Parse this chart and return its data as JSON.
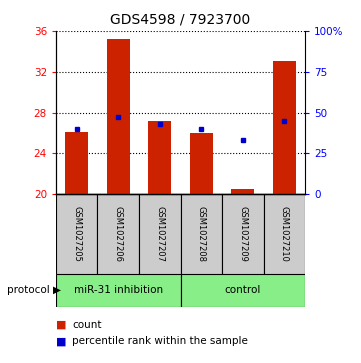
{
  "title": "GDS4598 / 7923700",
  "samples": [
    "GSM1027205",
    "GSM1027206",
    "GSM1027207",
    "GSM1027208",
    "GSM1027209",
    "GSM1027210"
  ],
  "count_values": [
    26.1,
    35.2,
    27.2,
    26.0,
    20.5,
    33.0
  ],
  "percentile_values": [
    40,
    47,
    43,
    40,
    33,
    45
  ],
  "y_min": 20,
  "y_max": 36,
  "y_ticks": [
    20,
    24,
    28,
    32,
    36
  ],
  "right_y_ticks": [
    0,
    25,
    50,
    75,
    100
  ],
  "right_y_labels": [
    "0",
    "25",
    "50",
    "75",
    "100%"
  ],
  "bar_color": "#cc2200",
  "percentile_color": "#0000cc",
  "group1_label": "miR-31 inhibition",
  "group2_label": "control",
  "group1_indices": [
    0,
    1,
    2
  ],
  "group2_indices": [
    3,
    4,
    5
  ],
  "group_color": "#88ee88",
  "sample_box_color": "#cccccc",
  "legend_count_label": "count",
  "legend_percentile_label": "percentile rank within the sample",
  "protocol_label": "protocol",
  "bar_width": 0.55,
  "fig_width": 3.61,
  "fig_height": 3.63,
  "dpi": 100
}
